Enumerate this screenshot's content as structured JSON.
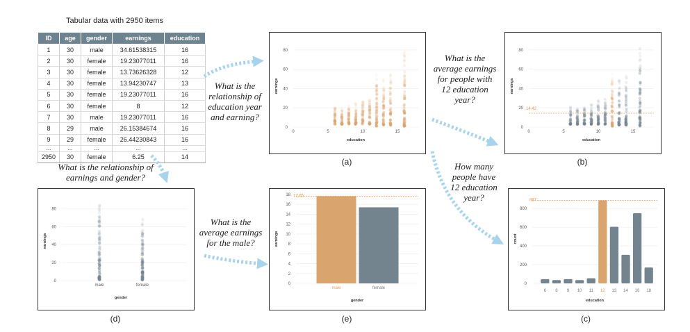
{
  "table": {
    "title": "Tabular data with 2950 items",
    "columns": [
      "ID",
      "age",
      "gender",
      "earnings",
      "education"
    ],
    "rows": [
      [
        "1",
        "30",
        "male",
        "34.61538315",
        "16"
      ],
      [
        "2",
        "30",
        "female",
        "19.23077011",
        "16"
      ],
      [
        "3",
        "30",
        "female",
        "13.73626328",
        "12"
      ],
      [
        "4",
        "30",
        "female",
        "13.94230747",
        "13"
      ],
      [
        "5",
        "30",
        "female",
        "19.23077011",
        "16"
      ],
      [
        "6",
        "30",
        "female",
        "8",
        "12"
      ],
      [
        "7",
        "30",
        "male",
        "19.23077011",
        "16"
      ],
      [
        "8",
        "29",
        "male",
        "26.15384674",
        "16"
      ],
      [
        "9",
        "29",
        "female",
        "26.44230843",
        "16"
      ]
    ],
    "ellipsis": [
      "...",
      "...",
      "...",
      "...",
      "..."
    ],
    "last_row": [
      "2950",
      "30",
      "female",
      "6.25",
      "14"
    ]
  },
  "questions": {
    "q_a": [
      "What is the",
      "relationship of",
      "education year",
      "and earning?"
    ],
    "q_b": [
      "What is the",
      "average earnings",
      "for people with",
      "12 education",
      "year?"
    ],
    "q_c": [
      "How many",
      "people have",
      "12 education",
      "year?"
    ],
    "q_d": [
      "What is the relationship of",
      "earnings and gender?"
    ],
    "q_e": [
      "What is the",
      "average earnings",
      "for the male?"
    ]
  },
  "captions": {
    "a": "(a)",
    "b": "(b)",
    "c": "(c)",
    "d": "(d)",
    "e": "(e)"
  },
  "colors": {
    "orange": "#d9a46e",
    "slate": "#74848f",
    "arrow": "#a8d3ec",
    "header": "#6e8390",
    "refline": "#e39a4e"
  },
  "chart_data": [
    {
      "id": "a",
      "type": "scatter",
      "xlabel": "education",
      "ylabel": "earnings",
      "xlim": [
        0,
        18
      ],
      "ylim": [
        0,
        85
      ],
      "xticks": [
        "0",
        "5",
        "10",
        "15"
      ],
      "yticks": [
        "0",
        "20",
        "40",
        "60",
        "80"
      ],
      "columns": [
        {
          "x": 6,
          "min": 3,
          "max": 22
        },
        {
          "x": 7,
          "min": 3,
          "max": 20
        },
        {
          "x": 8,
          "min": 3,
          "max": 22
        },
        {
          "x": 9,
          "min": 3,
          "max": 25
        },
        {
          "x": 10,
          "min": 3,
          "max": 28
        },
        {
          "x": 11,
          "min": 3,
          "max": 30
        },
        {
          "x": 12,
          "min": 1,
          "max": 55
        },
        {
          "x": 13,
          "min": 2,
          "max": 50
        },
        {
          "x": 14,
          "min": 2,
          "max": 55
        },
        {
          "x": 16,
          "min": 1,
          "max": 85
        }
      ],
      "color": "#d9a46e"
    },
    {
      "id": "b",
      "type": "scatter",
      "xlabel": "education",
      "ylabel": "earnings",
      "xlim": [
        0,
        18
      ],
      "ylim": [
        0,
        85
      ],
      "xticks": [
        "0",
        "5",
        "10",
        "15"
      ],
      "yticks": [
        "0",
        "20",
        "40",
        "60",
        "80"
      ],
      "reference_label": "14.42",
      "reference_value": 14.42,
      "highlight_x": 12,
      "columns": [
        {
          "x": 6,
          "min": 3,
          "max": 22
        },
        {
          "x": 7,
          "min": 3,
          "max": 20
        },
        {
          "x": 8,
          "min": 3,
          "max": 22
        },
        {
          "x": 9,
          "min": 3,
          "max": 25
        },
        {
          "x": 10,
          "min": 3,
          "max": 28
        },
        {
          "x": 11,
          "min": 3,
          "max": 30
        },
        {
          "x": 12,
          "min": 1,
          "max": 55
        },
        {
          "x": 13,
          "min": 2,
          "max": 50
        },
        {
          "x": 14,
          "min": 2,
          "max": 55
        },
        {
          "x": 16,
          "min": 1,
          "max": 85
        }
      ]
    },
    {
      "id": "c",
      "type": "bar",
      "xlabel": "education",
      "ylabel": "count",
      "categories": [
        "6",
        "8",
        "9",
        "10",
        "11",
        "12",
        "13",
        "14",
        "16",
        "18"
      ],
      "values": [
        45,
        35,
        45,
        35,
        55,
        887,
        605,
        305,
        750,
        170
      ],
      "highlight": "12",
      "reference_label": "887",
      "reference_value": 887,
      "ylim": [
        0,
        950
      ],
      "yticks": [
        "0",
        "200",
        "400",
        "600",
        "800"
      ]
    },
    {
      "id": "d",
      "type": "scatter",
      "xlabel": "gender",
      "ylabel": "earnings",
      "categories": [
        "male",
        "female"
      ],
      "ylim": [
        0,
        88
      ],
      "yticks": [
        "0",
        "20",
        "40",
        "60",
        "80"
      ],
      "columns": [
        {
          "cat": "male",
          "min": 1,
          "max": 85
        },
        {
          "cat": "female",
          "min": 1,
          "max": 70
        }
      ]
    },
    {
      "id": "e",
      "type": "bar",
      "xlabel": "gender",
      "ylabel": "earnings",
      "categories": [
        "male",
        "female"
      ],
      "values": [
        17.65,
        15.4
      ],
      "highlight": "male",
      "reference_label": "17.65",
      "reference_value": 17.65,
      "ylim": [
        0,
        18
      ],
      "yticks": [
        "0",
        "2",
        "4",
        "6",
        "8",
        "10",
        "12",
        "14",
        "16",
        "18"
      ]
    }
  ]
}
